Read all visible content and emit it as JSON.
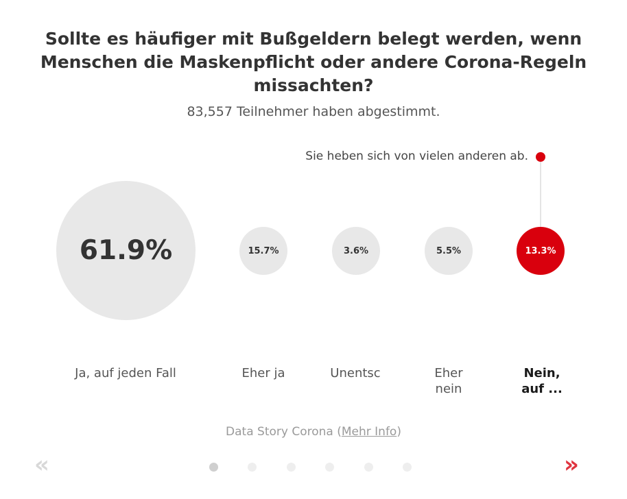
{
  "poll": {
    "question": "Sollte es häufiger mit Bußgeldern belegt werden, wenn Menschen die Maskenpflicht oder andere Corona-Regeln missachten?",
    "participants": "83,557 Teilnehmer haben abgestimmt.",
    "note": "Sie heben sich von vielen anderen ab."
  },
  "options": [
    {
      "value": "61.9%",
      "label": "Ja, auf jeden Fall",
      "share": 61.9
    },
    {
      "value": "15.7%",
      "label": "Eher ja",
      "share": 15.7
    },
    {
      "value": "3.6%",
      "label": "Unentsc",
      "share": 3.6
    },
    {
      "value": "5.5%",
      "label": "Eher nein",
      "share": 5.5
    },
    {
      "value": "13.3%",
      "label": "Nein, auf ...",
      "share": 13.3,
      "selected": true
    }
  ],
  "footer": {
    "prefix": "Data Story Corona (",
    "link": "Mehr Info",
    "suffix": ")"
  },
  "navigation": {
    "prev_icon": "double-chevron-left-icon",
    "next_icon": "double-chevron-right-icon",
    "prev_glyph": "«",
    "next_glyph": "»",
    "page_count": 6,
    "current_page": 1
  },
  "colors": {
    "accent": "#d9000d",
    "bubble": "#e8e8e8",
    "arrow_active": "#e0343f",
    "arrow_inactive": "#d8d8d8"
  }
}
